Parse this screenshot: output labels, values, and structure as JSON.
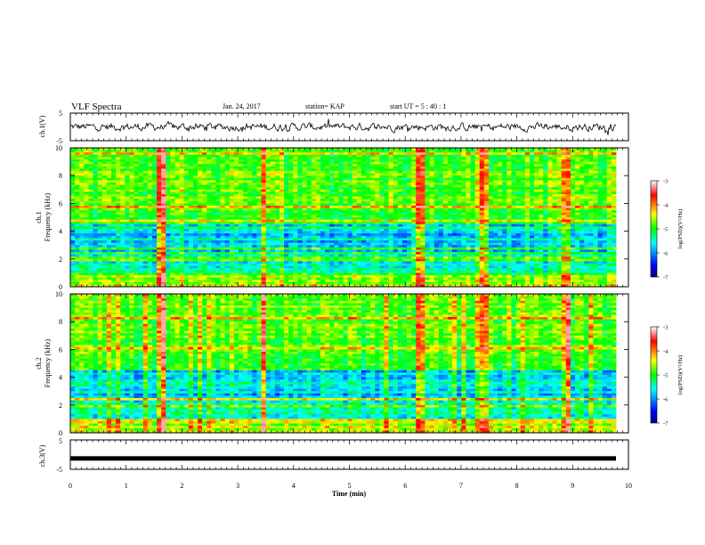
{
  "header": {
    "title": "VLF Spectra",
    "date": "Jan. 24, 2017",
    "station": "station= KAP",
    "start": "start  UT =  5 : 40 : 1"
  },
  "chart_data": [
    {
      "type": "line",
      "panel": "ch1-waveform",
      "ylabel": "ch.1(V)",
      "ylim": [
        -5,
        5
      ],
      "yticks": [
        "5",
        "-5"
      ],
      "xlim": [
        0,
        10
      ],
      "series": [
        {
          "description_values": "noisy waveform, mean ~ 0 V, amplitude ~ +/-1.5 V"
        }
      ]
    },
    {
      "type": "heatmap",
      "panel": "ch1-spectrogram",
      "ylabel": "ch.1\nFrequency  (kHz)",
      "ylabel_lines": [
        "ch.1",
        "Frequency  (kHz)"
      ],
      "ylim": [
        0,
        10
      ],
      "yticks": [
        "0",
        "2",
        "4",
        "6",
        "8",
        "10"
      ],
      "xlim": [
        0,
        10
      ],
      "colorbar": {
        "label": "log(PSD)(V²/Hz)",
        "range": [
          -7,
          -3
        ],
        "ticks": [
          "-3",
          "-4",
          "-5",
          "-6",
          "-7"
        ]
      },
      "strong_time_lines_min": [
        1.65,
        3.55,
        6.4,
        7.6,
        9.1
      ]
    },
    {
      "type": "heatmap",
      "panel": "ch2-spectrogram",
      "ylabel_lines": [
        "ch.2",
        "Frequency  (kHz)"
      ],
      "ylim": [
        0,
        10
      ],
      "yticks": [
        "0",
        "2",
        "4",
        "6",
        "8",
        "10"
      ],
      "xlim": [
        0,
        10
      ],
      "colorbar": {
        "label": "log(PSD)(V²/Hz)",
        "range": [
          -7,
          -3
        ],
        "ticks": [
          "-3",
          "-4",
          "-5",
          "-6",
          "-7"
        ]
      },
      "strong_time_lines_min": [
        1.65,
        3.55,
        6.4,
        7.6,
        9.1
      ]
    },
    {
      "type": "line",
      "panel": "ch3-waveform",
      "ylabel": "ch.3(V)",
      "ylim": [
        -5,
        5
      ],
      "yticks": [
        "5",
        "-5"
      ],
      "xlim": [
        0,
        10
      ],
      "series": [
        {
          "description_values": "flat line at ~ -1.3 V"
        }
      ],
      "constant_value": -1.3
    }
  ],
  "xaxis": {
    "label": "Time  (min)",
    "ticks": [
      "0",
      "1",
      "2",
      "3",
      "4",
      "5",
      "6",
      "7",
      "8",
      "9",
      "10"
    ]
  }
}
